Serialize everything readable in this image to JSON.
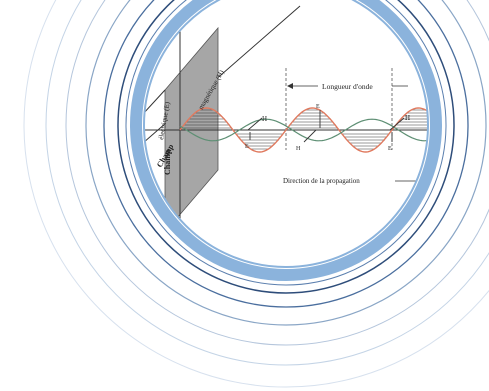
{
  "labels": {
    "wavelength": "Longueur d'onde",
    "propagation": "Direction de la propagation",
    "electric_field_a": "Champ",
    "electric_field_b": "électrique (E)",
    "magnetic_field_a": "Champ",
    "magnetic_field_b": "magnétique (H)",
    "h": "H",
    "e": "E"
  },
  "colors": {
    "ring_thick": "#8bb3dc",
    "ring_dark": "#2e4d7a",
    "ring_mid": "#4a6e9e",
    "ring_light": "#c4d4e6",
    "electric_wave": "#e07a5f",
    "magnetic_wave": "#5e8f74",
    "plane": "#a6a6a6",
    "text": "#222222"
  },
  "icons": [
    "arrowhead-icon"
  ]
}
